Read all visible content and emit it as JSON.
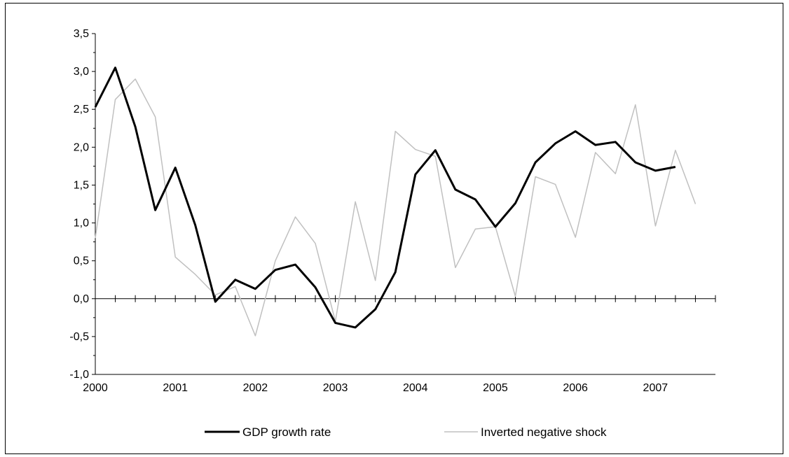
{
  "chart_data": {
    "type": "line",
    "title": "",
    "xlabel": "",
    "ylabel": "",
    "x_ticks": [
      "2000",
      "2001",
      "2002",
      "2003",
      "2004",
      "2005",
      "2006",
      "2007"
    ],
    "y_ticks": [
      "3,5",
      "3,0",
      "2,5",
      "2,0",
      "1,5",
      "1,0",
      "0,5",
      "0,0",
      "-0,5",
      "-1,0"
    ],
    "ylim": [
      -1.0,
      3.5
    ],
    "xlim": [
      2000.0,
      2007.75
    ],
    "grid": false,
    "legend_position": "bottom",
    "series": [
      {
        "name": "GDP growth rate",
        "color": "#000000",
        "x": [
          2000.0,
          2000.25,
          2000.5,
          2000.75,
          2001.0,
          2001.25,
          2001.5,
          2001.75,
          2002.0,
          2002.25,
          2002.5,
          2002.75,
          2003.0,
          2003.25,
          2003.5,
          2003.75,
          2004.0,
          2004.25,
          2004.5,
          2004.75,
          2005.0,
          2005.25,
          2005.5,
          2005.75,
          2006.0,
          2006.25,
          2006.5,
          2006.75,
          2007.0,
          2007.25
        ],
        "values": [
          2.53,
          3.05,
          2.27,
          1.17,
          1.73,
          0.97,
          -0.04,
          0.25,
          0.13,
          0.38,
          0.45,
          0.15,
          -0.32,
          -0.38,
          -0.14,
          0.35,
          1.64,
          1.96,
          1.44,
          1.31,
          0.95,
          1.26,
          1.8,
          2.05,
          2.21,
          2.03,
          2.07,
          1.8,
          1.69,
          1.74
        ]
      },
      {
        "name": "Inverted negative shock",
        "color": "#c0c0c0",
        "x": [
          2000.0,
          2000.25,
          2000.5,
          2000.75,
          2001.0,
          2001.25,
          2001.5,
          2001.75,
          2002.0,
          2002.25,
          2002.5,
          2002.75,
          2003.0,
          2003.25,
          2003.5,
          2003.75,
          2004.0,
          2004.25,
          2004.5,
          2004.75,
          2005.0,
          2005.25,
          2005.5,
          2005.75,
          2006.0,
          2006.25,
          2006.5,
          2006.75,
          2007.0,
          2007.25,
          2007.5
        ],
        "values": [
          0.8,
          2.63,
          2.9,
          2.4,
          0.55,
          0.32,
          0.05,
          0.16,
          -0.49,
          0.5,
          1.08,
          0.73,
          -0.3,
          1.28,
          0.24,
          2.21,
          1.97,
          1.88,
          0.41,
          0.92,
          0.95,
          0.03,
          1.61,
          1.51,
          0.81,
          1.93,
          1.65,
          2.56,
          0.96,
          1.96,
          1.25
        ]
      }
    ]
  }
}
